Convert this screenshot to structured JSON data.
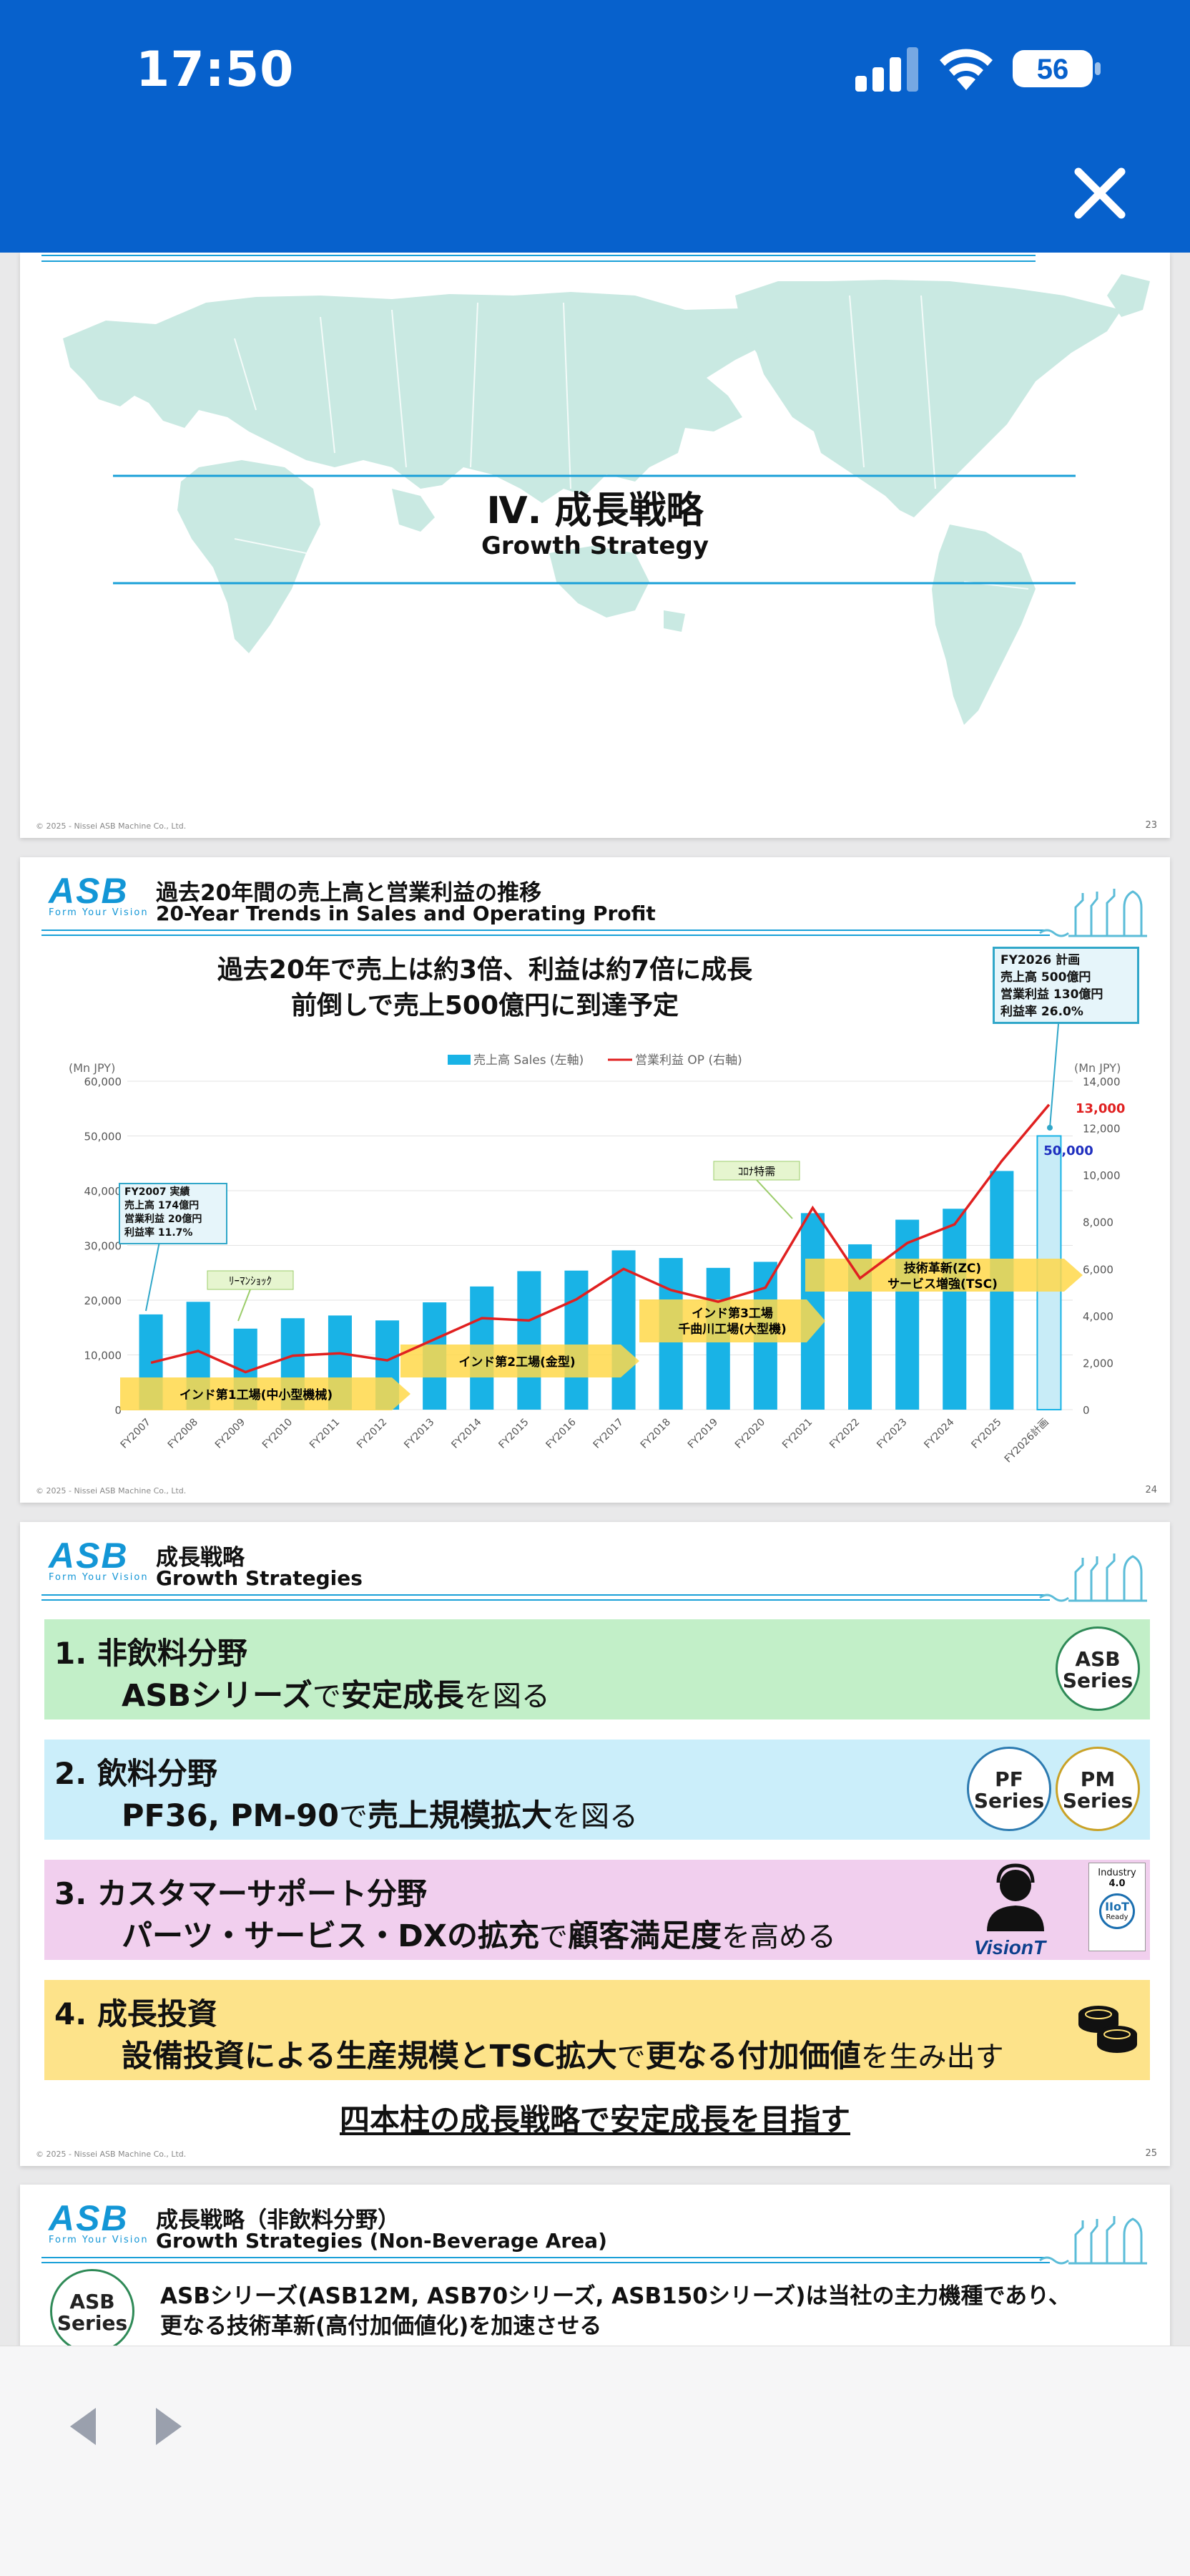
{
  "status_bar": {
    "time": "17:50",
    "battery": "56"
  },
  "slide23": {
    "title_jp": "Ⅳ. 成長戦略",
    "title_en": "Growth Strategy",
    "copyright": "© 2025 - Nissei ASB Machine Co., Ltd.",
    "page": "23"
  },
  "slide24": {
    "logo": "ASB",
    "logo_tagline": "Form Your Vision",
    "header_jp": "過去20年間の売上高と営業利益の推移",
    "header_en": "20-Year Trends in Sales and Operating Profit",
    "headline_1": "過去20年で売上は約3倍、利益は約7倍に成長",
    "headline_2": "前倒しで売上500億円に到達予定",
    "plan_box": [
      "FY2026 計画",
      "売上高 500億円",
      "営業利益 130億円",
      "利益率 26.0%"
    ],
    "actual_box": [
      "FY2007 実績",
      "売上高 174億円",
      "営業利益 20億円",
      "利益率 11.7%"
    ],
    "callouts": {
      "lehman": "ﾘｰﾏﾝｼｮｯｸ",
      "covid": "ｺﾛﾅ特需"
    },
    "arrows": [
      "インド第1工場(中小型機械)",
      "インド第2工場(金型)",
      "インド第3工場",
      "千曲川工場(大型機)",
      "技術革新(ZC)",
      "サービス増強(TSC)"
    ],
    "copyright": "© 2025 - Nissei ASB Machine Co., Ltd.",
    "page": "24"
  },
  "chart_data": {
    "type": "bar",
    "legend": [
      "売上高 Sales (左軸)",
      "営業利益 OP (右軸)"
    ],
    "left_axis_label": "(Mn JPY)",
    "right_axis_label": "(Mn JPY)",
    "categories": [
      "FY2007",
      "FY2008",
      "FY2009",
      "FY2010",
      "FY2011",
      "FY2012",
      "FY2013",
      "FY2014",
      "FY2015",
      "FY2016",
      "FY2017",
      "FY2018",
      "FY2019",
      "FY2020",
      "FY2021",
      "FY2022",
      "FY2023",
      "FY2024",
      "FY2025",
      "FY2026計画"
    ],
    "series": [
      {
        "name": "売上高 Sales (左軸)",
        "axis": "left",
        "values": [
          17400,
          19700,
          14800,
          16700,
          17200,
          16300,
          19600,
          22500,
          25300,
          25400,
          29100,
          27700,
          25900,
          27000,
          35900,
          30200,
          34700,
          36700,
          43600,
          50000
        ],
        "color": "#19b3e6"
      },
      {
        "name": "営業利益 OP (右軸)",
        "axis": "right",
        "values": [
          2000,
          2500,
          1600,
          2300,
          2400,
          2100,
          3000,
          3900,
          3800,
          4700,
          6000,
          5100,
          4600,
          5200,
          8600,
          5600,
          7100,
          7900,
          10600,
          13000
        ],
        "color": "#e02020"
      }
    ],
    "left_ticks": [
      "60,000",
      "50,000",
      "40,000",
      "30,000",
      "20,000",
      "10,000",
      "0"
    ],
    "right_ticks": [
      "14,000",
      "12,000",
      "10,000",
      "8,000",
      "6,000",
      "4,000",
      "2,000",
      "0"
    ],
    "ylim_left": [
      0,
      60000
    ],
    "ylim_right": [
      0,
      14000
    ],
    "labels": {
      "sales_2026": "50,000",
      "op_2026": "13,000"
    }
  },
  "slide25": {
    "header_jp": "成長戦略",
    "header_en": "Growth Strategies",
    "items": [
      {
        "num": "1.",
        "title": "非飲料分野",
        "d1": "ASBシリーズ",
        "d2": "で",
        "d3": "安定成長",
        "d4": "を図る",
        "color": "#c2efc8"
      },
      {
        "num": "2.",
        "title": "飲料分野",
        "d1": "PF36, PM-90",
        "d2": "で",
        "d3": "売上規模拡大",
        "d4": "を図る",
        "color": "#cbeefa"
      },
      {
        "num": "3.",
        "title": "カスタマーサポート分野",
        "d1": "パーツ・サービス・DXの拡充",
        "d2": "で",
        "d3": "顧客満足度",
        "d4": "を高める",
        "color": "#f1cfee"
      },
      {
        "num": "4.",
        "title": "成長投資",
        "d1": "設備投資による生産規模とTSC拡大",
        "d2": "で",
        "d3": "更なる付加価値",
        "d4": "を生み出す",
        "color": "#fde38a"
      }
    ],
    "badges": {
      "asb": [
        "ASB",
        "Series"
      ],
      "pf": [
        "PF",
        "Series"
      ],
      "pm": [
        "PM",
        "Series"
      ],
      "vision": "VisionT",
      "iiot": [
        "Industry",
        "4.0",
        "IIoT",
        "Ready"
      ]
    },
    "conclusion": "四本柱の成長戦略で安定成長を目指す",
    "copyright": "© 2025 - Nissei ASB Machine Co., Ltd.",
    "page": "25"
  },
  "slide26": {
    "header_jp": "成長戦略（非飲料分野）",
    "header_en": "Growth Strategies (Non-Beverage Area)",
    "badge": [
      "ASB",
      "Series"
    ],
    "body_1": "ASBシリーズ(ASB12M, ASB70シリーズ, ASB150シリーズ)は当社の主力機種であり、",
    "body_2": "更なる技術革新(高付加価値化)を加速させる"
  },
  "toolbar": {
    "back": "back",
    "forward": "forward"
  }
}
